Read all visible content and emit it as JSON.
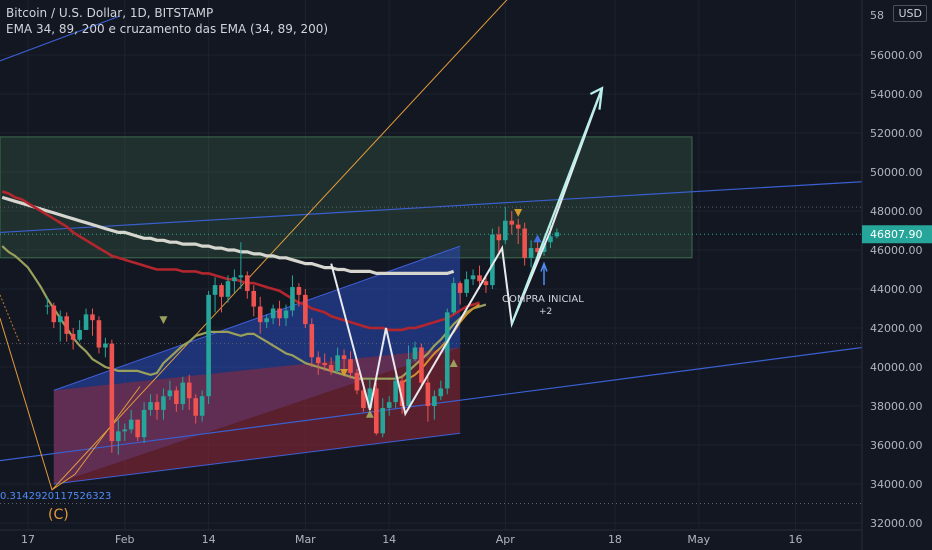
{
  "header": {
    "symbol": "Bitcoin / U.S. Dollar, 1D, BITSTAMP",
    "indicator": "EMA 34, 89, 200 e cruzamento das EMA (34, 89, 200)"
  },
  "currency_button": "USD",
  "chart_data": {
    "type": "candlestick",
    "ylim": [
      31500,
      58000
    ],
    "y_ticks": [
      32000,
      34000,
      36000,
      38000,
      40000,
      42000,
      44000,
      46000,
      48000,
      50000,
      52000,
      54000,
      56000
    ],
    "y_tick_labels": [
      "32000.00",
      "34000.00",
      "36000.00",
      "38000.00",
      "40000.00",
      "42000.00",
      "44000.00",
      "46000.00",
      "48000.00",
      "50000.00",
      "52000.00",
      "54000.00",
      "56000.00"
    ],
    "y_top_partial_label": "58",
    "x_tick_labels": [
      {
        "label": "17",
        "day": 0
      },
      {
        "label": "Feb",
        "day": 15
      },
      {
        "label": "14",
        "day": 28
      },
      {
        "label": "Mar",
        "day": 43
      },
      {
        "label": "14",
        "day": 56
      },
      {
        "label": "Apr",
        "day": 74
      },
      {
        "label": "18",
        "day": 91
      },
      {
        "label": "May",
        "day": 104
      },
      {
        "label": "16",
        "day": 119
      }
    ],
    "last_price": 46807.9,
    "last_price_label": "46807.90",
    "closes": [
      43150,
      42300,
      42600,
      41700,
      41400,
      41900,
      42700,
      42400,
      41000,
      41200,
      36200,
      36700,
      36800,
      37300,
      36400,
      37800,
      38200,
      37800,
      38500,
      38800,
      38100,
      39200,
      38400,
      37500,
      38500,
      43700,
      44200,
      43600,
      44400,
      44600,
      44700,
      43900,
      43100,
      42300,
      42500,
      43000,
      42500,
      42900,
      44100,
      43700,
      42200,
      40500,
      40200,
      40100,
      39800,
      40600,
      40400,
      39700,
      38800,
      37900,
      38900,
      36600,
      37900,
      38200,
      39300,
      38000,
      40400,
      41000,
      39200,
      38000,
      38500,
      38900,
      42800,
      44300,
      43800,
      44500,
      44700,
      44400,
      44200,
      46800,
      46500,
      47500,
      47300,
      47100,
      45600,
      46100,
      45900,
      46400,
      46700,
      46900
    ],
    "highs": [
      43600,
      43300,
      42900,
      42800,
      42000,
      42400,
      43000,
      43000,
      42600,
      41500,
      41400,
      37300,
      37100,
      37800,
      37200,
      38200,
      38600,
      38600,
      38900,
      39300,
      39000,
      39500,
      39600,
      38600,
      38800,
      43900,
      44600,
      44300,
      44700,
      45000,
      46400,
      44900,
      44200,
      43600,
      42700,
      43200,
      43400,
      43200,
      44700,
      44300,
      44000,
      42500,
      40800,
      40700,
      40500,
      41000,
      40900,
      40800,
      39900,
      39000,
      39400,
      39200,
      38400,
      38500,
      39600,
      39600,
      41100,
      41300,
      41200,
      39600,
      38800,
      39300,
      43000,
      44600,
      44400,
      44900,
      45000,
      45200,
      44700,
      47100,
      47200,
      48200,
      48000,
      47600,
      47400,
      46500,
      46500,
      46700,
      47300,
      47100
    ],
    "lows": [
      42700,
      42000,
      41300,
      41300,
      40900,
      41300,
      41900,
      41600,
      40700,
      40500,
      35600,
      35500,
      36200,
      36600,
      36200,
      36100,
      37500,
      37300,
      37300,
      38300,
      37700,
      37800,
      37800,
      37100,
      37200,
      38100,
      42800,
      42800,
      43300,
      43800,
      44000,
      43500,
      42600,
      41700,
      42000,
      42200,
      42100,
      42100,
      42600,
      43100,
      42000,
      40000,
      39600,
      39800,
      39600,
      39700,
      39600,
      39400,
      38600,
      37700,
      37700,
      36500,
      36400,
      37500,
      37900,
      37600,
      37800,
      40300,
      38900,
      37200,
      37300,
      38300,
      38600,
      42700,
      43200,
      43600,
      44200,
      44000,
      43800,
      44000,
      45900,
      46300,
      46800,
      46300,
      45200,
      45100,
      45400,
      45700,
      46100,
      46600
    ],
    "ema34": [
      46200,
      45900,
      45700,
      45400,
      45100,
      44600,
      44100,
      43500,
      43000,
      42500,
      42000,
      41500,
      41100,
      40800,
      40400,
      40200,
      40000,
      39900,
      39800,
      39800,
      39800,
      39800,
      39700,
      39600,
      39700,
      40200,
      40500,
      40800,
      41100,
      41300,
      41600,
      41700,
      41800,
      41800,
      41800,
      41800,
      41700,
      41600,
      41700,
      41700,
      41500,
      41300,
      41100,
      40900,
      40700,
      40600,
      40400,
      40200,
      40100,
      40000,
      39900,
      39800,
      39700,
      39600,
      39500,
      39400,
      39400,
      39400,
      39400,
      39400,
      39400,
      39400,
      39500,
      39800,
      40100,
      40400,
      40700,
      41100,
      41400,
      41800,
      42200,
      42500,
      42800,
      43000,
      43100,
      43200
    ],
    "ema89": [
      49000,
      48900,
      48700,
      48600,
      48400,
      48200,
      48000,
      47800,
      47600,
      47400,
      47200,
      46900,
      46700,
      46500,
      46300,
      46100,
      45900,
      45700,
      45600,
      45500,
      45400,
      45300,
      45200,
      45100,
      45000,
      45000,
      45000,
      45000,
      44900,
      44900,
      44900,
      44800,
      44800,
      44700,
      44600,
      44500,
      44500,
      44400,
      44300,
      44300,
      44200,
      44100,
      44000,
      43900,
      43700,
      43500,
      43300,
      43200,
      43000,
      42900,
      42800,
      42600,
      42500,
      42400,
      42300,
      42200,
      42100,
      42000,
      42000,
      42000,
      41900,
      41900,
      41900,
      42000,
      42000,
      42100,
      42200,
      42300,
      42400,
      42500,
      42700,
      42900,
      43100,
      43200,
      43300
    ],
    "ema200": [
      48700,
      48600,
      48500,
      48400,
      48300,
      48200,
      48100,
      48000,
      47900,
      47800,
      47700,
      47600,
      47500,
      47400,
      47300,
      47200,
      47100,
      47000,
      46900,
      46900,
      46800,
      46700,
      46600,
      46600,
      46500,
      46500,
      46400,
      46400,
      46300,
      46300,
      46300,
      46200,
      46200,
      46100,
      46100,
      46000,
      46000,
      45900,
      45900,
      45800,
      45800,
      45700,
      45700,
      45600,
      45600,
      45500,
      45400,
      45300,
      45300,
      45200,
      45100,
      45100,
      45000,
      45000,
      44900,
      44900,
      44900,
      44900,
      44800,
      44800,
      44800,
      44800,
      44800,
      44800,
      44800,
      44800,
      44800,
      44800,
      44800,
      44800,
      44900
    ],
    "annotations": {
      "buy_label": "COMPRA INICIAL",
      "buy_sub": "+2",
      "wave_label": "(C)",
      "fib_label": "0.3142920117526323"
    }
  }
}
